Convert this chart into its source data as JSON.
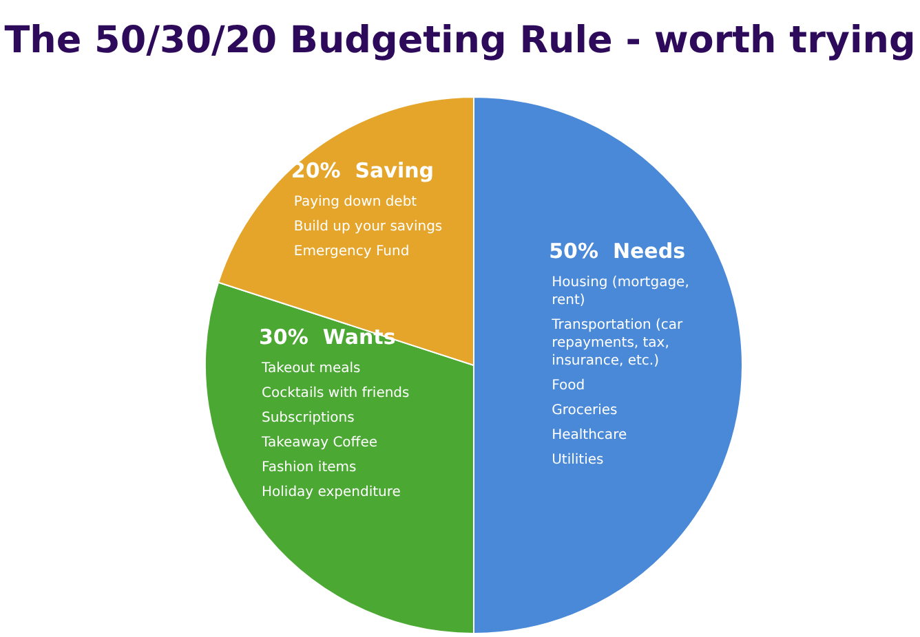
{
  "chart_data": {
    "type": "pie",
    "title": "The 50/30/20 Budgeting Rule - worth trying",
    "categories": [
      "Needs",
      "Wants",
      "Saving"
    ],
    "values": [
      50,
      30,
      20
    ],
    "value_labels": [
      "50%",
      "30%",
      "20%"
    ],
    "colors": [
      "#4a88d8",
      "#4aa833",
      "#e4a52a"
    ],
    "legend": false,
    "annotations": [
      {
        "text": "Housing (mortgage, rent)",
        "x": "Needs"
      },
      {
        "text": "Transportation (car repayments, tax, insurance, etc.)",
        "x": "Needs"
      },
      {
        "text": "Food",
        "x": "Needs"
      },
      {
        "text": "Groceries",
        "x": "Needs"
      },
      {
        "text": "Healthcare",
        "x": "Needs"
      },
      {
        "text": "Utilities",
        "x": "Needs"
      },
      {
        "text": "Takeout meals",
        "x": "Wants"
      },
      {
        "text": "Cocktails with friends",
        "x": "Wants"
      },
      {
        "text": "Subscriptions",
        "x": "Wants"
      },
      {
        "text": "Takeaway Coffee",
        "x": "Wants"
      },
      {
        "text": "Fashion items",
        "x": "Wants"
      },
      {
        "text": "Holiday expenditure",
        "x": "Wants"
      },
      {
        "text": "Paying down debt",
        "x": "Saving"
      },
      {
        "text": "Build up your savings",
        "x": "Saving"
      },
      {
        "text": "Emergency Fund",
        "x": "Saving"
      }
    ]
  }
}
